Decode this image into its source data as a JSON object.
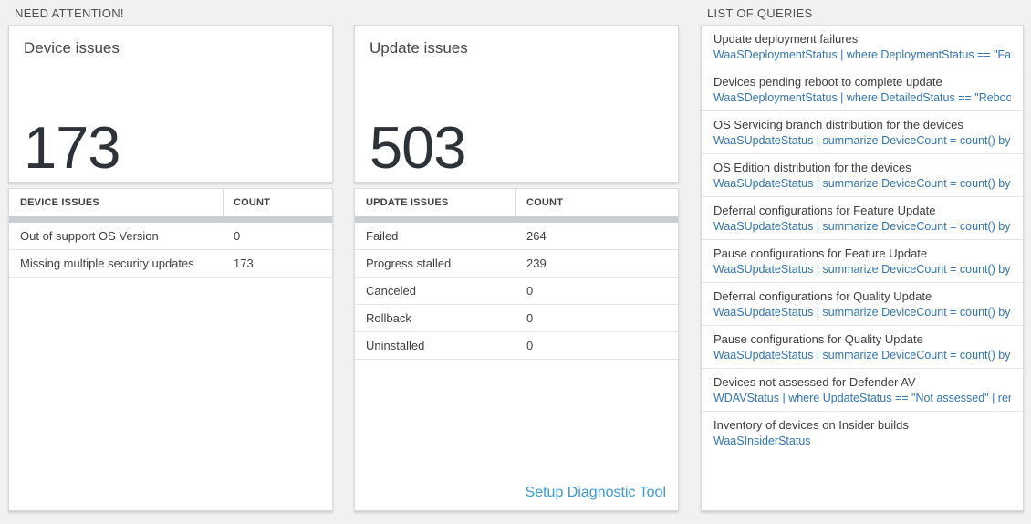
{
  "colors": {
    "query_link_blue": "#3075b5",
    "action_link_blue": "#3a9ad9",
    "big_number_color": "#2d3238",
    "page_background": "#f1f1f2",
    "scroll_track": "#c9ced2"
  },
  "sections": {
    "need_attention": {
      "title": "NEED ATTENTION!"
    },
    "queries": {
      "title": "LIST OF QUERIES"
    }
  },
  "device_panel": {
    "card_title": "Device issues",
    "card_value": "173",
    "table": {
      "headers": [
        "DEVICE ISSUES",
        "COUNT"
      ],
      "rows": [
        {
          "label": "Out of support OS Version",
          "count": "0"
        },
        {
          "label": "Missing multiple security updates",
          "count": "173"
        }
      ]
    }
  },
  "update_panel": {
    "card_title": "Update issues",
    "card_value": "503",
    "table": {
      "headers": [
        "UPDATE ISSUES",
        "COUNT"
      ],
      "rows": [
        {
          "label": "Failed",
          "count": "264"
        },
        {
          "label": "Progress stalled",
          "count": "239"
        },
        {
          "label": "Canceled",
          "count": "0"
        },
        {
          "label": "Rollback",
          "count": "0"
        },
        {
          "label": "Uninstalled",
          "count": "0"
        }
      ]
    },
    "footer_link": "Setup Diagnostic Tool"
  },
  "queries_panel": {
    "items": [
      {
        "title": "Update deployment failures",
        "query": "WaaSDeploymentStatus | where DeploymentStatus == \"Failed\" |..."
      },
      {
        "title": "Devices pending reboot to complete update",
        "query": "WaaSDeploymentStatus | where DetailedStatus == \"Reboot pend..."
      },
      {
        "title": "OS Servicing branch distribution for the devices",
        "query": "WaaSUpdateStatus | summarize DeviceCount = count() by OSSer..."
      },
      {
        "title": "OS Edition distribution for the devices",
        "query": "WaaSUpdateStatus | summarize DeviceCount = count() by OSEdit..."
      },
      {
        "title": "Deferral configurations for Feature Update",
        "query": "WaaSUpdateStatus | summarize DeviceCount = count() by Featur..."
      },
      {
        "title": "Pause configurations for Feature Update",
        "query": "WaaSUpdateStatus | summarize DeviceCount = count() by Featur..."
      },
      {
        "title": "Deferral configurations for Quality Update",
        "query": "WaaSUpdateStatus | summarize DeviceCount = count() by Qualit..."
      },
      {
        "title": "Pause configurations for Quality Update",
        "query": "WaaSUpdateStatus | summarize DeviceCount = count() by Qualit..."
      },
      {
        "title": "Devices not assessed for Defender AV",
        "query": "WDAVStatus | where UpdateStatus == \"Not assessed\" | render ta..."
      },
      {
        "title": "Inventory of devices on Insider builds",
        "query": "WaaSInsiderStatus"
      }
    ]
  }
}
